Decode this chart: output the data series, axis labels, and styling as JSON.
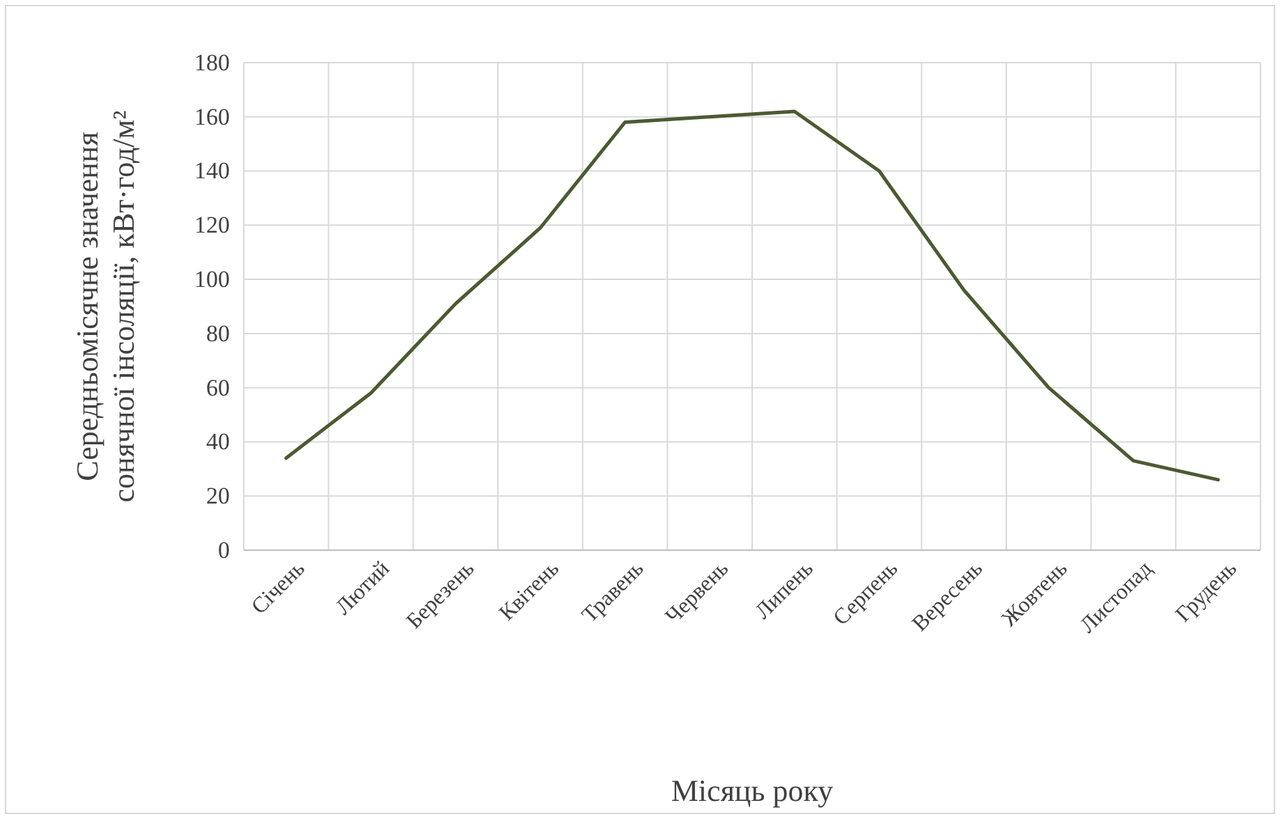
{
  "chart_data": {
    "type": "line",
    "xlabel": "Місяць року",
    "ylabel": "Середньомісячне значення\nсонячної інсоляції, кВт·год/м²",
    "categories": [
      "Січень",
      "Лютий",
      "Березень",
      "Квітень",
      "Травень",
      "Червень",
      "Липень",
      "Серпень",
      "Вересень",
      "Жовтень",
      "Листопад",
      "Грудень"
    ],
    "series": [
      {
        "color": "#4b5a32",
        "values": [
          34,
          58,
          91,
          119,
          158,
          160,
          162,
          140,
          96,
          60,
          33,
          26
        ]
      }
    ],
    "ylim": [
      0,
      180
    ],
    "yticks": [
      0,
      20,
      40,
      60,
      80,
      100,
      120,
      140,
      160,
      180
    ],
    "grid": true,
    "marker": "none",
    "line_style": "solid"
  }
}
